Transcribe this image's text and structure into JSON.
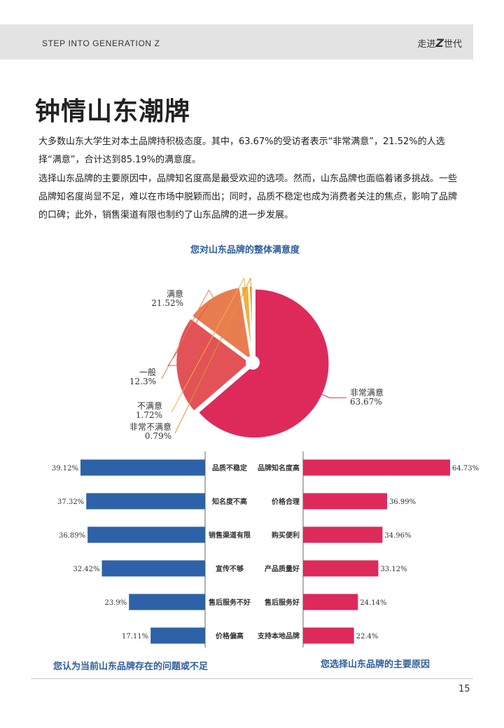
{
  "header": {
    "left": "STEP INTO GENERATION Z",
    "right_prefix": "走进",
    "right_z": "Z",
    "right_suffix": "世代"
  },
  "page_title": "钟情山东潮牌",
  "paragraphs": [
    "大多数山东大学生对本土品牌持积极态度。其中，63.67%的受访者表示“非常满意”，21.52%的人选择“满意”，合计达到85.19%的满意度。",
    "选择山东品牌的主要原因中，品牌知名度高是最受欢迎的选项。然而，山东品牌也面临着诸多挑战。一些品牌知名度尚显不足，难以在市场中脱颖而出；同时，品质不稳定也成为消费者关注的焦点，影响了品牌的口碑；此外，销售渠道有限也制约了山东品牌的进一步发展。"
  ],
  "colors": {
    "very_satisfied": "#dd2a5b",
    "satisfied": "#e25256",
    "neutral": "#e87d50",
    "unsatisfied": "#f0b13c",
    "very_unsatisfied": "#d99a2c",
    "blue_bar": "#2e62a8",
    "red_bar": "#dd2a5b",
    "chart_title": "#2e5d9a"
  },
  "chart_data": [
    {
      "type": "pie",
      "title": "您对山东品牌的整体满意度",
      "slices": [
        {
          "name": "非常满意",
          "value": 63.67,
          "label": "63.67%"
        },
        {
          "name": "满意",
          "value": 21.52,
          "label": "21.52%"
        },
        {
          "name": "一般",
          "value": 12.3,
          "label": "12.3%"
        },
        {
          "name": "不满意",
          "value": 1.72,
          "label": "1.72%"
        },
        {
          "name": "非常不满意",
          "value": 0.79,
          "label": "0.79%"
        }
      ]
    },
    {
      "type": "bar",
      "orientation": "horizontal",
      "title": "您认为当前山东品牌存在的问题或不足",
      "categories": [
        "品质不稳定",
        "知名度不高",
        "销售渠道有限",
        "宣传不够",
        "售后服务不好",
        "价格偏高"
      ],
      "values": [
        39.12,
        37.32,
        36.89,
        32.42,
        23.9,
        17.11
      ],
      "labels": [
        "39.12%",
        "37.32%",
        "36.89%",
        "32.42%",
        "23.9%",
        "17.11%"
      ]
    },
    {
      "type": "bar",
      "orientation": "horizontal",
      "title": "您选择山东品牌的主要原因",
      "categories": [
        "品牌知名度高",
        "价格合理",
        "购买便利",
        "产品质量好",
        "售后服务好",
        "支持本地品牌"
      ],
      "values": [
        64.73,
        36.99,
        34.96,
        33.12,
        24.14,
        22.4
      ],
      "labels": [
        "64.73%",
        "36.99%",
        "34.96%",
        "33.12%",
        "24.14%",
        "22.4%"
      ]
    }
  ],
  "page_number": "15"
}
